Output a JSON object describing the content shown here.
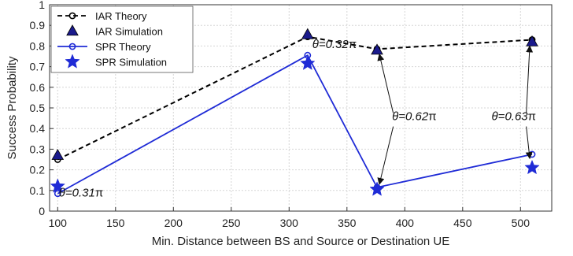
{
  "chart_data": {
    "type": "line",
    "xlabel": "Min. Distance between BS and Source or Destination UE",
    "ylabel": "Success Probability",
    "xlim": [
      93,
      527
    ],
    "ylim": [
      0,
      1
    ],
    "xticks": [
      100,
      150,
      200,
      250,
      300,
      350,
      400,
      450,
      500
    ],
    "yticks": [
      0,
      0.1,
      0.2,
      0.3,
      0.4,
      0.5,
      0.6,
      0.7,
      0.8,
      0.9,
      1
    ],
    "ytick_labels": [
      "0",
      "0.1",
      "0.2",
      "0.3",
      "0.4",
      "0.5",
      "0.6",
      "0.7",
      "0.8",
      "0.9",
      "1"
    ],
    "grid": true,
    "legend_position": "top-left",
    "x": [
      100,
      316,
      376,
      510
    ],
    "series": [
      {
        "name": "IAR Theory",
        "values": [
          0.25,
          0.845,
          0.785,
          0.83
        ],
        "color": "#000000",
        "style": "dashed-circle"
      },
      {
        "name": "IAR Simulation",
        "values": [
          0.27,
          0.855,
          0.78,
          0.82
        ],
        "color": "#1a1a8c",
        "style": "triangle"
      },
      {
        "name": "SPR Theory",
        "values": [
          0.085,
          0.755,
          0.115,
          0.275
        ],
        "color": "#1f2bd6",
        "style": "solid-circle"
      },
      {
        "name": "SPR Simulation",
        "values": [
          0.12,
          0.715,
          0.105,
          0.21
        ],
        "color": "#1f2bd6",
        "style": "star"
      }
    ],
    "annotations": [
      {
        "theta": "0.31",
        "text_x": 101,
        "text_y": 0.07
      },
      {
        "theta": "0.32",
        "text_x": 320,
        "text_y": 0.79
      },
      {
        "theta": "0.62",
        "text_x": 389,
        "text_y": 0.44
      },
      {
        "theta": "0.63",
        "text_x": 475,
        "text_y": 0.44
      }
    ],
    "arrows": [
      {
        "from": [
          390,
          0.475
        ],
        "to": [
          378,
          0.76
        ]
      },
      {
        "from": [
          390,
          0.41
        ],
        "to": [
          378,
          0.13
        ]
      },
      {
        "from": [
          505,
          0.475
        ],
        "to": [
          508,
          0.8
        ]
      },
      {
        "from": [
          505,
          0.41
        ],
        "to": [
          508,
          0.255
        ]
      }
    ]
  }
}
